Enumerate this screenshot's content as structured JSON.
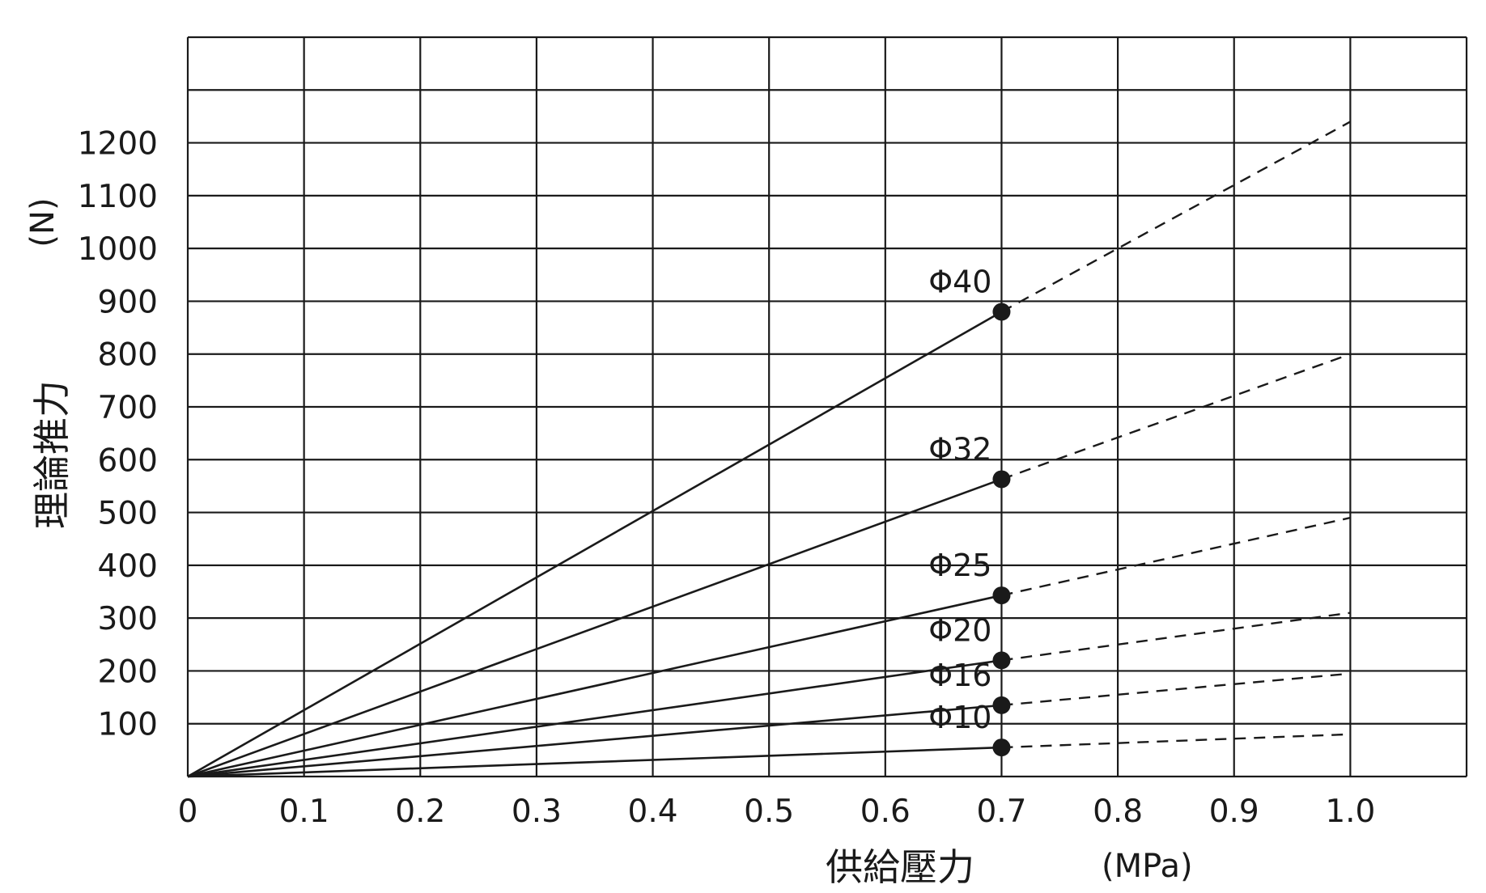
{
  "chart_data": {
    "type": "line",
    "xlabel": "供給壓力",
    "xunit": "(MPa)",
    "ylabel": "理論推力",
    "yunit": "(N)",
    "xlim": [
      0,
      1.1
    ],
    "ylim": [
      0,
      1400
    ],
    "x_ticks": [
      "0",
      "0.1",
      "0.2",
      "0.3",
      "0.4",
      "0.5",
      "0.6",
      "0.7",
      "0.8",
      "0.9",
      "1.0"
    ],
    "y_ticks": [
      "100",
      "200",
      "300",
      "400",
      "500",
      "600",
      "700",
      "800",
      "900",
      "1000",
      "1100",
      "1200"
    ],
    "grid": true,
    "series": [
      {
        "name": "Φ40",
        "solid": [
          [
            0,
            0
          ],
          [
            0.7,
            880
          ]
        ],
        "dashed": [
          [
            0.7,
            880
          ],
          [
            1.0,
            1240
          ]
        ],
        "marker": [
          0.7,
          880
        ]
      },
      {
        "name": "Φ32",
        "solid": [
          [
            0,
            0
          ],
          [
            0.7,
            563
          ]
        ],
        "dashed": [
          [
            0.7,
            563
          ],
          [
            1.0,
            800
          ]
        ],
        "marker": [
          0.7,
          563
        ]
      },
      {
        "name": "Φ25",
        "solid": [
          [
            0,
            0
          ],
          [
            0.7,
            343
          ]
        ],
        "dashed": [
          [
            0.7,
            343
          ],
          [
            1.0,
            490
          ]
        ],
        "marker": [
          0.7,
          343
        ]
      },
      {
        "name": "Φ20",
        "solid": [
          [
            0,
            0
          ],
          [
            0.7,
            220
          ]
        ],
        "dashed": [
          [
            0.7,
            220
          ],
          [
            1.0,
            310
          ]
        ],
        "marker": [
          0.7,
          220
        ]
      },
      {
        "name": "Φ16",
        "solid": [
          [
            0,
            0
          ],
          [
            0.7,
            135
          ]
        ],
        "dashed": [
          [
            0.7,
            135
          ],
          [
            1.0,
            195
          ]
        ],
        "marker": [
          0.7,
          135
        ]
      },
      {
        "name": "Φ10",
        "solid": [
          [
            0,
            0
          ],
          [
            0.7,
            55
          ]
        ],
        "dashed": [
          [
            0.7,
            55
          ],
          [
            1.0,
            80
          ]
        ],
        "marker": [
          0.7,
          55
        ]
      }
    ]
  }
}
